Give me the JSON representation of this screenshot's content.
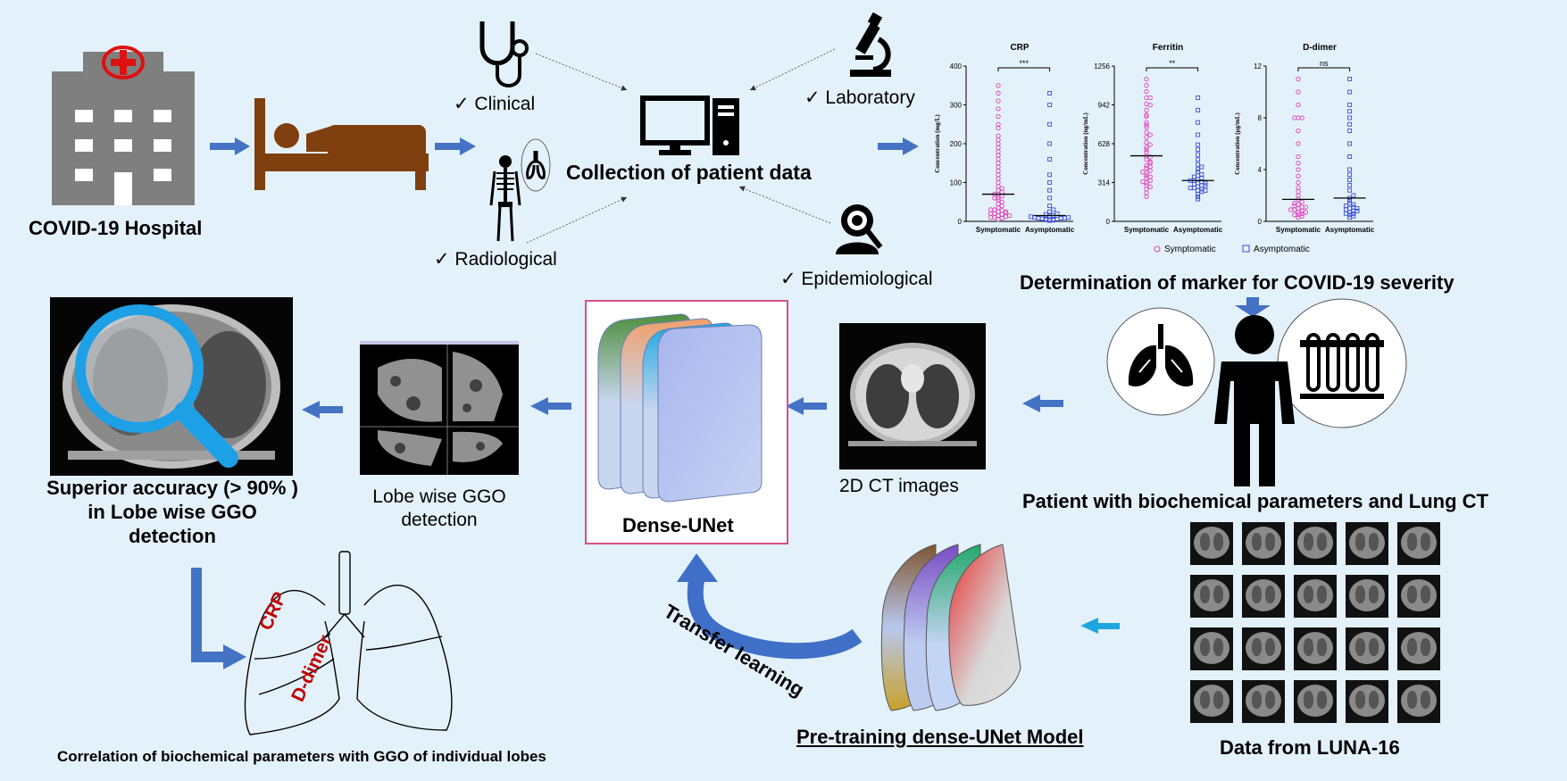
{
  "colors": {
    "background": "#e3f1fb",
    "arrow_blue": "#4472c4",
    "light_arrow": "#1fa6e0",
    "bed_brown": "#7f3f0f",
    "hospital_gray": "#7f7f7f",
    "red_cross": "#e01010",
    "pink_frame": "#d6508a",
    "crp_red": "#c00000",
    "symptomatic": "#e03cb6",
    "asymptomatic": "#3c4cd6"
  },
  "hospital": {
    "label": "COVID-19 Hospital"
  },
  "data_collection": {
    "title": "Collection of patient data",
    "clinical": "✓ Clinical",
    "radiological": "✓ Radiological",
    "laboratory": "✓ Laboratory",
    "epidemiological": "✓ Epidemiological"
  },
  "markers": {
    "section_title": "Determination of marker for COVID-19 severity",
    "legend": [
      "Symptomatic",
      "Asymptomatic"
    ],
    "significance": [
      "***",
      "**",
      "ns"
    ]
  },
  "chart_data": [
    {
      "type": "scatter",
      "title": "CRP",
      "ylabel": "Concentration (mg/L)",
      "categories": [
        "Symptomatic",
        "Asymptomatic"
      ],
      "y_ticks": [
        "0",
        "100",
        "200",
        "300",
        "400"
      ],
      "ylim": [
        0,
        400
      ],
      "significance": "***",
      "series": [
        {
          "name": "Symptomatic",
          "values": [
            5,
            8,
            10,
            12,
            15,
            18,
            20,
            22,
            25,
            28,
            30,
            35,
            40,
            45,
            50,
            55,
            60,
            65,
            70,
            75,
            80,
            90,
            100,
            110,
            120,
            130,
            140,
            150,
            160,
            170,
            180,
            190,
            200,
            210,
            220,
            240,
            250,
            270,
            290,
            310,
            330,
            350,
            20,
            25,
            30,
            15,
            10,
            60,
            70,
            85
          ]
        },
        {
          "name": "Asymptomatic",
          "values": [
            2,
            3,
            4,
            5,
            5,
            6,
            6,
            7,
            8,
            8,
            9,
            10,
            10,
            12,
            14,
            15,
            18,
            20,
            25,
            30,
            40,
            60,
            80,
            100,
            120,
            160,
            200,
            250,
            300,
            330
          ]
        }
      ]
    },
    {
      "type": "scatter",
      "title": "Ferritin",
      "ylabel": "Concentration (ng/mL)",
      "categories": [
        "Symptomatic",
        "Asymptomatic"
      ],
      "y_ticks": [
        "0",
        "314",
        "628",
        "942",
        "1256"
      ],
      "ylim": [
        0,
        1256
      ],
      "significance": "**",
      "series": [
        {
          "name": "Symptomatic",
          "values": [
            200,
            230,
            260,
            290,
            310,
            330,
            350,
            370,
            390,
            410,
            430,
            450,
            470,
            500,
            530,
            560,
            600,
            640,
            680,
            720,
            760,
            800,
            850,
            900,
            950,
            1000,
            1050,
            1100,
            1150,
            280,
            320,
            360,
            400,
            440,
            480,
            520,
            580,
            620,
            700,
            780,
            860,
            940,
            1000
          ]
        },
        {
          "name": "Asymptomatic",
          "values": [
            180,
            200,
            220,
            240,
            250,
            260,
            270,
            280,
            290,
            300,
            310,
            320,
            330,
            340,
            350,
            360,
            370,
            380,
            400,
            420,
            440,
            460,
            500,
            540,
            580,
            620,
            700,
            800,
            900,
            1000,
            250,
            270,
            290,
            310,
            330
          ]
        }
      ]
    },
    {
      "type": "scatter",
      "title": "D-dimer",
      "ylabel": "Concentration (μg/mL)",
      "categories": [
        "Symptomatic",
        "Asymptomatic"
      ],
      "y_ticks": [
        "0",
        "4",
        "8",
        "12"
      ],
      "ylim": [
        0,
        12
      ],
      "significance": "ns",
      "series": [
        {
          "name": "Symptomatic",
          "values": [
            0.3,
            0.4,
            0.5,
            0.6,
            0.7,
            0.8,
            0.9,
            1.0,
            1.1,
            1.2,
            1.3,
            1.5,
            1.7,
            2.0,
            2.3,
            2.6,
            3.0,
            3.5,
            4.0,
            4.5,
            5.0,
            6.0,
            7.0,
            8.0,
            8.0,
            8.0,
            9.0,
            10.0,
            11.0,
            0.5,
            0.7,
            0.9,
            1.1,
            1.4
          ]
        },
        {
          "name": "Asymptomatic",
          "values": [
            0.3,
            0.4,
            0.5,
            0.6,
            0.7,
            0.8,
            0.9,
            1.0,
            1.1,
            1.2,
            1.4,
            1.6,
            1.8,
            2.0,
            2.4,
            2.8,
            3.2,
            3.6,
            4.0,
            5.0,
            6.0,
            7.0,
            7.5,
            8.0,
            8.5,
            9.0,
            10.0,
            11.0,
            0.6,
            0.8,
            1.0,
            1.3
          ]
        }
      ]
    }
  ],
  "patient": {
    "label": "Patient with biochemical parameters and Lung CT"
  },
  "ct": {
    "label": "2D CT images"
  },
  "model": {
    "label": "Dense-UNet"
  },
  "lobe": {
    "label_line1": "Lobe wise GGO",
    "label_line2": "detection"
  },
  "accuracy": {
    "line1": "Superior accuracy (> 90% )",
    "line2": "in Lobe wise GGO",
    "line3": "detection"
  },
  "correlation": {
    "label": "Correlation of biochemical parameters with GGO of individual lobes",
    "crp": "CRP",
    "ddimer": "D-dimer"
  },
  "transfer": {
    "label": "Transfer learning"
  },
  "pretrain": {
    "label": "Pre-training dense-UNet Model"
  },
  "luna": {
    "label": "Data from LUNA-16"
  }
}
